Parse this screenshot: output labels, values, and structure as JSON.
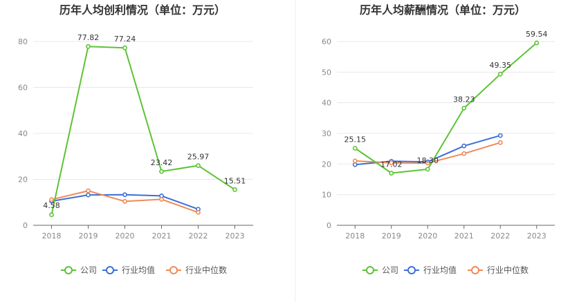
{
  "colors": {
    "company": "#5cc334",
    "industry_avg": "#3a6fd8",
    "industry_median": "#ee8a58",
    "axis": "#666666",
    "grid": "#e8e8e8",
    "divider": "#eeeeee"
  },
  "legend": [
    "公司",
    "行业均值",
    "行业中位数"
  ],
  "chart_data": [
    {
      "type": "line",
      "title": "历年人均创利情况（单位：万元）",
      "categories": [
        "2018",
        "2019",
        "2020",
        "2021",
        "2022",
        "2023"
      ],
      "ylim": [
        0,
        80
      ],
      "yticks": [
        0,
        20,
        40,
        60,
        80
      ],
      "grid": true,
      "legend_position": "bottom",
      "series": [
        {
          "name": "公司",
          "values": [
            4.58,
            77.82,
            77.24,
            23.42,
            25.97,
            15.51
          ],
          "labels": [
            "4.58",
            "77.82",
            "77.24",
            "23.42",
            "25.97",
            "15.51"
          ]
        },
        {
          "name": "行业均值",
          "values": [
            10.5,
            13.2,
            13.3,
            12.8,
            7.0,
            null
          ]
        },
        {
          "name": "行业中位数",
          "values": [
            11.2,
            15.0,
            10.4,
            11.3,
            5.6,
            null
          ]
        }
      ]
    },
    {
      "type": "line",
      "title": "历年人均薪酬情况（单位：万元）",
      "categories": [
        "2018",
        "2019",
        "2020",
        "2021",
        "2022",
        "2023"
      ],
      "ylim": [
        0,
        60
      ],
      "yticks": [
        0,
        10,
        20,
        30,
        40,
        50,
        60
      ],
      "grid": true,
      "legend_position": "bottom",
      "series": [
        {
          "name": "公司",
          "values": [
            25.15,
            17.02,
            18.3,
            38.23,
            49.35,
            59.54
          ],
          "labels": [
            "25.15",
            "17.02",
            "18.30",
            "38.23",
            "49.35",
            "59.54"
          ]
        },
        {
          "name": "行业均值",
          "values": [
            19.8,
            20.9,
            20.7,
            25.9,
            29.3,
            null
          ]
        },
        {
          "name": "行业中位数",
          "values": [
            21.0,
            20.4,
            20.3,
            23.4,
            27.0,
            null
          ]
        }
      ]
    }
  ]
}
